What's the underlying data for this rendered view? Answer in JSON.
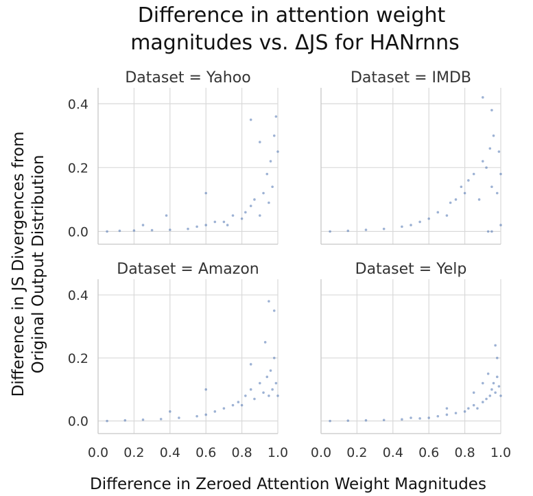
{
  "chart_data": {
    "type": "scatter",
    "title_lines": [
      "Difference in attention weight",
      "magnitudes vs. ΔJS for HANrnns"
    ],
    "xlabel": "Difference in Zeroed Attention Weight Magnitudes",
    "ylabel_lines": [
      "Difference in JS Divergences from",
      "Original Output Distribution"
    ],
    "xlim": [
      0.0,
      1.0
    ],
    "ylim": [
      -0.04,
      0.45
    ],
    "x_ticks": [
      "0.0",
      "0.2",
      "0.4",
      "0.6",
      "0.8",
      "1.0"
    ],
    "y_ticks": [
      "0.0",
      "0.2",
      "0.4"
    ],
    "grid": true,
    "point_color": "#4c72b0",
    "panels": [
      {
        "title": "Dataset = Yahoo",
        "points": [
          [
            0.05,
            0.0
          ],
          [
            0.12,
            0.002
          ],
          [
            0.2,
            0.003
          ],
          [
            0.3,
            0.004
          ],
          [
            0.4,
            0.005
          ],
          [
            0.5,
            0.008
          ],
          [
            0.55,
            0.015
          ],
          [
            0.6,
            0.02
          ],
          [
            0.65,
            0.03
          ],
          [
            0.7,
            0.03
          ],
          [
            0.72,
            0.02
          ],
          [
            0.75,
            0.05
          ],
          [
            0.8,
            0.04
          ],
          [
            0.82,
            0.06
          ],
          [
            0.85,
            0.08
          ],
          [
            0.87,
            0.1
          ],
          [
            0.9,
            0.05
          ],
          [
            0.92,
            0.12
          ],
          [
            0.94,
            0.18
          ],
          [
            0.95,
            0.09
          ],
          [
            0.96,
            0.22
          ],
          [
            0.97,
            0.14
          ],
          [
            0.98,
            0.3
          ],
          [
            0.99,
            0.36
          ],
          [
            1.0,
            0.25
          ],
          [
            0.85,
            0.35
          ],
          [
            0.9,
            0.28
          ],
          [
            0.6,
            0.12
          ],
          [
            0.38,
            0.05
          ],
          [
            0.25,
            0.02
          ]
        ]
      },
      {
        "title": "Dataset = IMDB",
        "points": [
          [
            0.05,
            0.0
          ],
          [
            0.15,
            0.002
          ],
          [
            0.25,
            0.005
          ],
          [
            0.35,
            0.008
          ],
          [
            0.45,
            0.015
          ],
          [
            0.5,
            0.02
          ],
          [
            0.55,
            0.03
          ],
          [
            0.6,
            0.04
          ],
          [
            0.65,
            0.06
          ],
          [
            0.7,
            0.05
          ],
          [
            0.72,
            0.09
          ],
          [
            0.75,
            0.1
          ],
          [
            0.78,
            0.14
          ],
          [
            0.8,
            0.12
          ],
          [
            0.82,
            0.16
          ],
          [
            0.85,
            0.18
          ],
          [
            0.88,
            0.1
          ],
          [
            0.9,
            0.22
          ],
          [
            0.92,
            0.2
          ],
          [
            0.94,
            0.26
          ],
          [
            0.95,
            0.14
          ],
          [
            0.96,
            0.3
          ],
          [
            0.98,
            0.12
          ],
          [
            0.99,
            0.25
          ],
          [
            1.0,
            0.18
          ],
          [
            0.9,
            0.42
          ],
          [
            0.95,
            0.38
          ],
          [
            0.93,
            0.0
          ],
          [
            0.95,
            0.0
          ],
          [
            1.0,
            0.02
          ]
        ]
      },
      {
        "title": "Dataset = Amazon",
        "points": [
          [
            0.05,
            0.0
          ],
          [
            0.15,
            0.002
          ],
          [
            0.25,
            0.004
          ],
          [
            0.35,
            0.006
          ],
          [
            0.45,
            0.01
          ],
          [
            0.55,
            0.015
          ],
          [
            0.6,
            0.02
          ],
          [
            0.65,
            0.03
          ],
          [
            0.7,
            0.04
          ],
          [
            0.75,
            0.05
          ],
          [
            0.78,
            0.06
          ],
          [
            0.8,
            0.05
          ],
          [
            0.82,
            0.08
          ],
          [
            0.85,
            0.1
          ],
          [
            0.87,
            0.07
          ],
          [
            0.9,
            0.12
          ],
          [
            0.92,
            0.09
          ],
          [
            0.94,
            0.14
          ],
          [
            0.95,
            0.08
          ],
          [
            0.96,
            0.16
          ],
          [
            0.97,
            0.1
          ],
          [
            0.98,
            0.2
          ],
          [
            0.99,
            0.12
          ],
          [
            1.0,
            0.08
          ],
          [
            0.95,
            0.38
          ],
          [
            0.98,
            0.35
          ],
          [
            0.93,
            0.25
          ],
          [
            0.6,
            0.1
          ],
          [
            0.4,
            0.03
          ],
          [
            0.85,
            0.18
          ]
        ]
      },
      {
        "title": "Dataset = Yelp",
        "points": [
          [
            0.05,
            0.0
          ],
          [
            0.15,
            0.001
          ],
          [
            0.25,
            0.002
          ],
          [
            0.35,
            0.003
          ],
          [
            0.45,
            0.005
          ],
          [
            0.55,
            0.008
          ],
          [
            0.6,
            0.01
          ],
          [
            0.65,
            0.015
          ],
          [
            0.7,
            0.02
          ],
          [
            0.75,
            0.025
          ],
          [
            0.8,
            0.03
          ],
          [
            0.82,
            0.04
          ],
          [
            0.85,
            0.05
          ],
          [
            0.87,
            0.04
          ],
          [
            0.9,
            0.06
          ],
          [
            0.92,
            0.07
          ],
          [
            0.94,
            0.08
          ],
          [
            0.95,
            0.1
          ],
          [
            0.96,
            0.12
          ],
          [
            0.97,
            0.09
          ],
          [
            0.98,
            0.14
          ],
          [
            0.99,
            0.11
          ],
          [
            1.0,
            0.08
          ],
          [
            0.97,
            0.24
          ],
          [
            0.98,
            0.2
          ],
          [
            0.9,
            0.12
          ],
          [
            0.7,
            0.04
          ],
          [
            0.5,
            0.01
          ],
          [
            0.85,
            0.09
          ],
          [
            0.93,
            0.15
          ]
        ]
      }
    ]
  }
}
